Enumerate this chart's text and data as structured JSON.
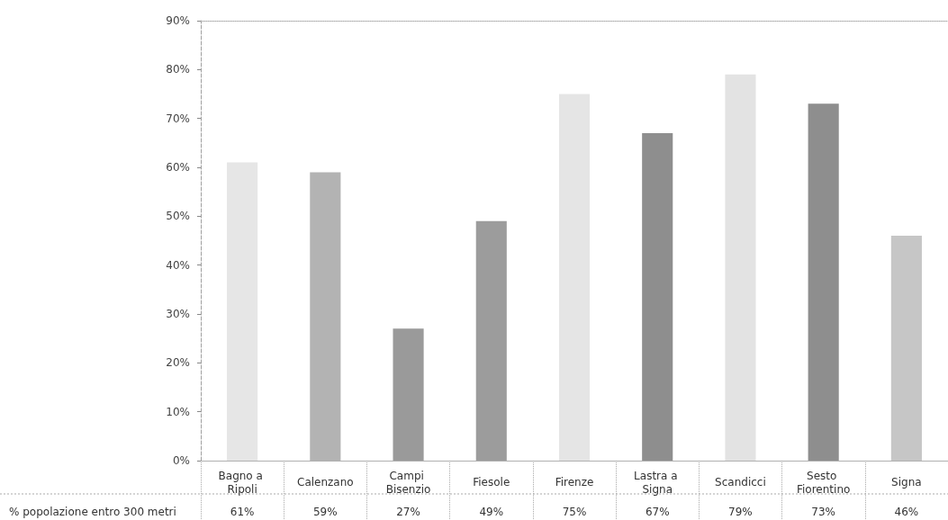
{
  "chart_data": {
    "type": "bar",
    "categories": [
      "Bagno a Ripoli",
      "Calenzano",
      "Campi Bisenzio",
      "Fiesole",
      "Firenze",
      "Lastra a Signa",
      "Scandicci",
      "Sesto Fiorentino",
      "Signa"
    ],
    "series": [
      {
        "name": "% popolazione entro 300 metri",
        "values": [
          61,
          59,
          27,
          49,
          75,
          67,
          79,
          73,
          46
        ],
        "colors": [
          "#e6e6e6",
          "#b3b3b3",
          "#9a9a9a",
          "#9c9c9c",
          "#e5e5e5",
          "#8e8e8e",
          "#e3e3e3",
          "#8e8e8e",
          "#c6c6c6"
        ],
        "value_labels": [
          "61%",
          "59%",
          "27%",
          "49%",
          "75%",
          "67%",
          "79%",
          "73%",
          "46%"
        ]
      }
    ],
    "ylim": [
      0,
      90
    ],
    "yticks": [
      {
        "value": 0,
        "label": "0%"
      },
      {
        "value": 10,
        "label": "10%"
      },
      {
        "value": 20,
        "label": "20%"
      },
      {
        "value": 30,
        "label": "30%"
      },
      {
        "value": 40,
        "label": "40%"
      },
      {
        "value": 50,
        "label": "50%"
      },
      {
        "value": 60,
        "label": "60%"
      },
      {
        "value": 70,
        "label": "70%"
      },
      {
        "value": 80,
        "label": "80%"
      },
      {
        "value": 90,
        "label": "90%"
      }
    ]
  }
}
